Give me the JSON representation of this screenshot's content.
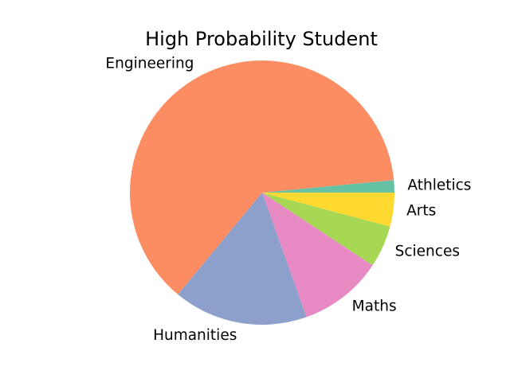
{
  "chart_data": {
    "type": "pie",
    "title": "High Probability Student",
    "slices": [
      {
        "label": "Athletics",
        "value": 1.5,
        "color": "#66c2a5"
      },
      {
        "label": "Engineering",
        "value": 62.0,
        "color": "#fc8d62"
      },
      {
        "label": "Humanities",
        "value": 16.3,
        "color": "#8da0cb"
      },
      {
        "label": "Maths",
        "value": 10.2,
        "color": "#e78ac3"
      },
      {
        "label": "Sciences",
        "value": 5.1,
        "color": "#a6d854"
      },
      {
        "label": "Arts",
        "value": 4.1,
        "color": "#ffd92f"
      }
    ],
    "start_angle_deg": 0,
    "direction": "counterclockwise",
    "legend": "none"
  }
}
